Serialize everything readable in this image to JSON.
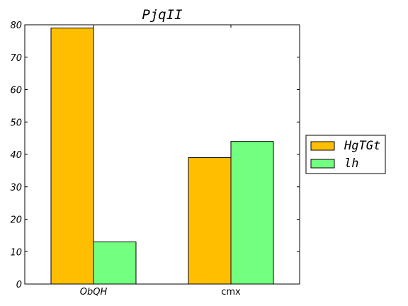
{
  "chart_data": {
    "type": "bar",
    "title": "PjqII",
    "xlabel": "",
    "ylabel": "",
    "categories": [
      "ObQH",
      "cmx"
    ],
    "series": [
      {
        "name": "HgTGt",
        "values": [
          79,
          39
        ],
        "color": "#ffbf00"
      },
      {
        "name": "lh",
        "values": [
          13,
          44
        ],
        "color": "#73ff80"
      }
    ],
    "ylim": [
      0,
      80
    ],
    "yticks": [
      0,
      10,
      20,
      30,
      40,
      50,
      60,
      70,
      80
    ],
    "grid": false,
    "legend_position": "right-outside"
  }
}
